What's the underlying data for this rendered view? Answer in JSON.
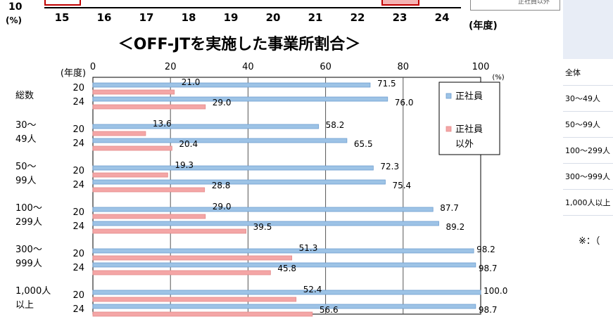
{
  "top_fragment": {
    "y_value": "10",
    "y_unit": "(%)",
    "x_ticks": [
      "15",
      "16",
      "17",
      "18",
      "19",
      "20",
      "21",
      "22",
      "23",
      "24"
    ],
    "x_unit": "(年度)",
    "legend_text": "正社員以外"
  },
  "chart_data": {
    "type": "bar",
    "orientation": "horizontal",
    "title": "＜OFF-JTを実施した事業所割合＞",
    "y_axis_title": "(年度)",
    "x_unit": "(%)",
    "xlim": [
      0,
      100
    ],
    "x_ticks": [
      0,
      20,
      40,
      60,
      80,
      100
    ],
    "grid": true,
    "legend_placement": "right",
    "groups": [
      {
        "label": "総数",
        "years": [
          {
            "year": "20",
            "regular": 71.5,
            "nonregular": 21.0
          },
          {
            "year": "24",
            "regular": 76.0,
            "nonregular": 29.0
          }
        ]
      },
      {
        "label": "30〜\n49人",
        "years": [
          {
            "year": "20",
            "regular": 58.2,
            "nonregular": 13.6
          },
          {
            "year": "24",
            "regular": 65.5,
            "nonregular": 20.4
          }
        ]
      },
      {
        "label": "50〜\n99人",
        "years": [
          {
            "year": "20",
            "regular": 72.3,
            "nonregular": 19.3
          },
          {
            "year": "24",
            "regular": 75.4,
            "nonregular": 28.8
          }
        ]
      },
      {
        "label": "100〜\n299人",
        "years": [
          {
            "year": "20",
            "regular": 87.7,
            "nonregular": 29.0
          },
          {
            "year": "24",
            "regular": 89.2,
            "nonregular": 39.5
          }
        ]
      },
      {
        "label": "300〜\n999人",
        "years": [
          {
            "year": "20",
            "regular": 98.2,
            "nonregular": 51.3
          },
          {
            "year": "24",
            "regular": 98.7,
            "nonregular": 45.8
          }
        ]
      },
      {
        "label": "1,000人\n以上",
        "years": [
          {
            "year": "20",
            "regular": 100.0,
            "nonregular": 52.4
          },
          {
            "year": "24",
            "regular": 98.7,
            "nonregular": 56.6
          }
        ]
      }
    ],
    "series": [
      {
        "key": "regular",
        "name": "正社員",
        "color": "#9dc3e6"
      },
      {
        "key": "nonregular",
        "name": "正社員\n以外",
        "color": "#f4a6a6"
      }
    ]
  },
  "side_table": {
    "rows": [
      "全体",
      "30〜49人",
      "50〜99人",
      "100〜299人",
      "300〜999人",
      "1,000人以上"
    ],
    "note": "※：（"
  }
}
